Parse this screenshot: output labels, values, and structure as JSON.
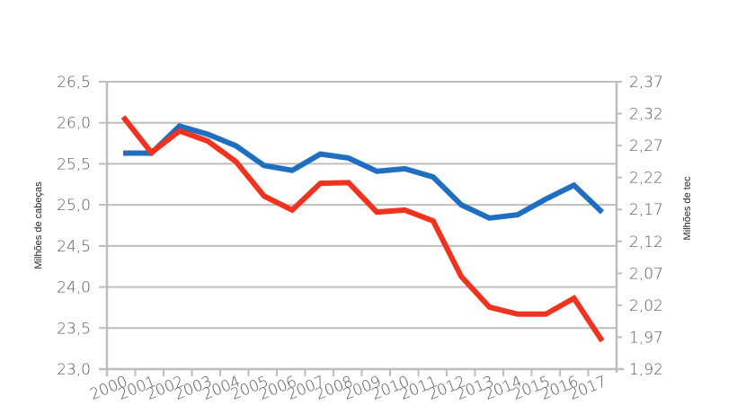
{
  "chart_data": {
    "type": "line",
    "title": "",
    "xlabel": "",
    "ylabel": "Milhões de cabeças",
    "ylabel_right": "Milhões de tec",
    "categories": [
      "2000",
      "2001",
      "2002",
      "2003",
      "2004",
      "2005",
      "2006",
      "2007",
      "2008",
      "2009",
      "2010",
      "2011",
      "2012",
      "2013",
      "2014",
      "2015",
      "2016",
      "2017"
    ],
    "ylim": [
      23.0,
      26.5
    ],
    "ylim_right": [
      1.92,
      2.37
    ],
    "yticks": [
      "26,5",
      "26,0",
      "25,5",
      "25,0",
      "24,5",
      "24,0",
      "23,5",
      "23,0"
    ],
    "yticks_right": [
      "2,37",
      "2,32",
      "2,27",
      "2,22",
      "2,17",
      "2,12",
      "2,07",
      "2,02",
      "1,97",
      "1,92"
    ],
    "grid": true,
    "legend": "none",
    "series": [
      {
        "name": "Milhões de cabeças",
        "axis": "left",
        "color": "#1f6fc1",
        "values": [
          25.63,
          25.63,
          25.96,
          25.86,
          25.72,
          25.48,
          25.42,
          25.62,
          25.57,
          25.41,
          25.44,
          25.34,
          25.0,
          24.84,
          24.88,
          25.07,
          25.24,
          24.91
        ]
      },
      {
        "name": "Milhões de tec",
        "axis": "right",
        "color": "#f0321e",
        "values": [
          2.315,
          2.259,
          2.293,
          2.277,
          2.245,
          2.191,
          2.169,
          2.211,
          2.212,
          2.166,
          2.169,
          2.152,
          2.065,
          2.017,
          2.006,
          2.006,
          2.031,
          1.964
        ]
      }
    ]
  }
}
